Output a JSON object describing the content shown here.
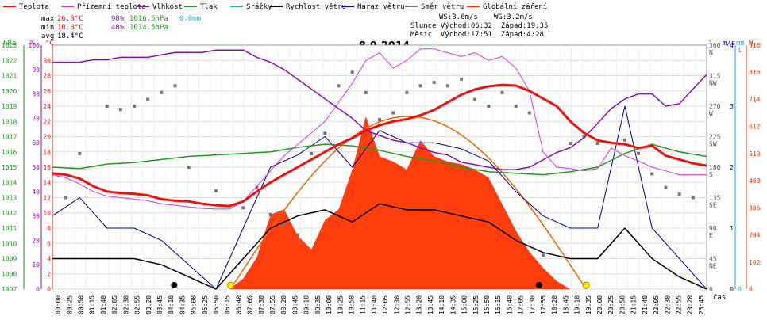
{
  "colors": {
    "teplota": "#ee1111",
    "prizemni": "#dd33dd",
    "vlhkost": "#8811aa",
    "tlak": "#229922",
    "srazky": "#22aacc",
    "rychlost": "#000000",
    "naraz": "#000088",
    "smer": "#777777",
    "zareni": "#ee3300",
    "zareni_fill": "#ff3300",
    "theory": "#ee6600"
  },
  "header": {
    "legend": [
      {
        "key": "teplota",
        "label": "Teplota"
      },
      {
        "key": "prizemni",
        "label": "Přízemní teplota"
      },
      {
        "key": "vlhkost",
        "label": "Vlhkost"
      },
      {
        "key": "tlak",
        "label": "Tlak"
      },
      {
        "key": "srazky",
        "label": "Srážky"
      },
      {
        "key": "rychlost",
        "label": "Rychlost větru"
      },
      {
        "key": "naraz",
        "label": "Náraz větru"
      },
      {
        "key": "smer",
        "label": "Směr větru"
      },
      {
        "key": "zareni",
        "label": "Globální záření"
      }
    ],
    "stats": {
      "max_label": "max",
      "max_temp": "26.8°C",
      "max_hum": "98%",
      "max_press": "1016.5hPa",
      "rain": "0.0mm",
      "min_label": "min",
      "min_temp": "10.8°C",
      "min_hum": "48%",
      "min_press": "1014.5hPa",
      "avg_label": "avg",
      "avg_temp": "18.4°C"
    },
    "ws": "WS:3.6m/s",
    "wg": "WG:3.2m/s",
    "sun_row": "Slunce Východ:06:32  Západ:19:35",
    "moon_row": "Měsíc  Východ:17:51  Západ:4:28"
  },
  "chart_data": {
    "type": "line",
    "title": "8.9.2014",
    "xlabel": "čas",
    "axes": {
      "hpa": {
        "label": "hPa",
        "min": 1007,
        "max": 1023,
        "ticks": [
          1007,
          1008,
          1009,
          1010,
          1011,
          1012,
          1013,
          1014,
          1015,
          1016,
          1017,
          1018,
          1019,
          1020,
          1021,
          1022,
          1023
        ]
      },
      "pct": {
        "label": "%",
        "min": 0,
        "max": 100,
        "ticks": [
          0,
          10,
          20,
          30,
          40,
          50,
          60,
          70,
          80,
          90,
          100
        ]
      },
      "temp": {
        "label": "°C",
        "min": 0,
        "max": 32,
        "ticks": [
          0,
          2,
          4,
          6,
          8,
          10,
          12,
          14,
          16,
          18,
          20,
          22,
          24,
          26,
          28,
          30
        ]
      },
      "dir": {
        "label": "°",
        "ticks": [
          {
            "v": 0,
            "t": "0"
          },
          {
            "v": 45,
            "t": "45",
            "c": "NE"
          },
          {
            "v": 90,
            "t": "90",
            "c": "E"
          },
          {
            "v": 135,
            "t": "135",
            "c": "SE"
          },
          {
            "v": 180,
            "t": "180",
            "c": "S"
          },
          {
            "v": 225,
            "t": "225",
            "c": "SW"
          },
          {
            "v": 270,
            "t": "270",
            "c": "W"
          },
          {
            "v": 315,
            "t": "315",
            "c": "NW"
          },
          {
            "v": 360,
            "t": "360",
            "c": "N"
          }
        ]
      },
      "ms": {
        "label": "m/s",
        "ticks": [
          0,
          1,
          2,
          3,
          4
        ]
      },
      "mm": {
        "label": "mm",
        "ticks": [
          0,
          1
        ]
      },
      "wm2": {
        "label": "W",
        "ticks": [
          0,
          102,
          204,
          306,
          408,
          510,
          612,
          714,
          816,
          918
        ]
      }
    },
    "time_labels": [
      "00:00",
      "00:25",
      "00:50",
      "01:15",
      "01:40",
      "02:05",
      "02:30",
      "02:55",
      "03:20",
      "03:45",
      "04:10",
      "04:35",
      "05:00",
      "05:25",
      "05:50",
      "06:15",
      "06:40",
      "07:05",
      "07:30",
      "07:55",
      "08:20",
      "08:45",
      "09:10",
      "09:35",
      "10:00",
      "10:25",
      "10:50",
      "11:15",
      "11:40",
      "12:05",
      "12:30",
      "12:55",
      "13:20",
      "13:45",
      "14:10",
      "14:35",
      "15:00",
      "15:25",
      "15:50",
      "16:15",
      "16:40",
      "17:05",
      "17:30",
      "17:55",
      "18:20",
      "18:45",
      "19:10",
      "19:35",
      "20:00",
      "20:25",
      "20:50",
      "21:15",
      "21:40",
      "22:05",
      "22:30",
      "22:55",
      "23:20",
      "23:45"
    ],
    "series": [
      {
        "key": "teplota",
        "name": "Teplota",
        "unit": "°C",
        "x": [
          0,
          0.5,
          1,
          1.5,
          2,
          2.5,
          3,
          3.5,
          4,
          4.5,
          5,
          5.5,
          6,
          6.5,
          7,
          7.5,
          8,
          8.5,
          9,
          9.5,
          10,
          10.5,
          11,
          11.5,
          12,
          12.5,
          13,
          13.5,
          14,
          14.5,
          15,
          15.5,
          16,
          16.5,
          17,
          17.5,
          18,
          18.5,
          19,
          19.5,
          20,
          20.5,
          21,
          21.5,
          22,
          22.5,
          23,
          23.5,
          24
        ],
        "values": [
          15.2,
          15.0,
          14.5,
          13.5,
          12.8,
          12.6,
          12.5,
          12.3,
          11.8,
          11.6,
          11.5,
          11.2,
          11.0,
          10.9,
          11.5,
          12.8,
          14.0,
          15.0,
          16.0,
          17.0,
          18.0,
          19.0,
          19.8,
          20.8,
          21.5,
          22.0,
          22.3,
          22.8,
          23.5,
          24.5,
          25.5,
          26.2,
          26.6,
          26.8,
          26.7,
          26.0,
          25.0,
          24.0,
          22.0,
          20.5,
          19.5,
          19.2,
          19.0,
          18.5,
          18.8,
          17.5,
          17.0,
          16.5,
          16.2
        ]
      },
      {
        "key": "prizemni",
        "name": "Přízemní teplota",
        "unit": "°C",
        "x": [
          0,
          0.5,
          1,
          1.5,
          2,
          2.5,
          3,
          3.5,
          4,
          4.5,
          5,
          5.5,
          6,
          6.5,
          7,
          7.5,
          8,
          8.5,
          9,
          9.5,
          10,
          10.5,
          11,
          11.5,
          12,
          12.5,
          13,
          13.5,
          14,
          14.5,
          15,
          15.5,
          16,
          16.5,
          17,
          17.5,
          18,
          18.5,
          19,
          19.5,
          20,
          20.5,
          21,
          21.5,
          22,
          22.5,
          23,
          23.5,
          24
        ],
        "values": [
          15.0,
          14.6,
          13.8,
          12.8,
          12.2,
          12.0,
          11.8,
          11.6,
          11.2,
          11.0,
          10.8,
          10.6,
          10.5,
          10.5,
          11.5,
          13.5,
          15.5,
          17.5,
          19.0,
          20.5,
          22.0,
          24.5,
          27.0,
          30.0,
          31.0,
          29.0,
          30.0,
          31.5,
          31.5,
          31.0,
          30.5,
          31.0,
          30.0,
          30.5,
          29.0,
          26.0,
          18.0,
          16.0,
          15.8,
          15.5,
          15.8,
          18.5,
          17.5,
          16.8,
          16.0,
          15.5,
          15.0,
          15.0,
          15.0
        ]
      },
      {
        "key": "vlhkost",
        "name": "Vlhkost",
        "unit": "%",
        "x": [
          0,
          0.5,
          1,
          1.5,
          2,
          2.5,
          3,
          3.5,
          4,
          4.5,
          5,
          5.5,
          6,
          6.5,
          7,
          7.5,
          8,
          8.5,
          9,
          9.5,
          10,
          10.5,
          11,
          11.5,
          12,
          12.5,
          13,
          13.5,
          14,
          14.5,
          15,
          15.5,
          16,
          16.5,
          17,
          17.5,
          18,
          18.5,
          19,
          19.5,
          20,
          20.5,
          21,
          21.5,
          22,
          22.5,
          23,
          23.5,
          24
        ],
        "values": [
          93,
          93,
          93,
          94,
          94,
          95,
          95,
          95,
          96,
          97,
          97,
          97,
          98,
          98,
          98,
          95,
          93,
          90,
          86,
          82,
          78,
          74,
          70,
          65,
          63,
          61,
          60,
          58,
          56,
          55,
          52,
          51,
          50,
          49,
          49,
          50,
          53,
          56,
          58,
          62,
          68,
          74,
          78,
          80,
          80,
          75,
          76,
          82,
          88
        ]
      },
      {
        "key": "tlak",
        "name": "Tlak",
        "unit": "hPa",
        "x": [
          0,
          1,
          2,
          3,
          4,
          5,
          6,
          7,
          8,
          9,
          10,
          11,
          12,
          13,
          14,
          15,
          16,
          17,
          18,
          19,
          20,
          21,
          22,
          23,
          24
        ],
        "values": [
          1015.0,
          1014.9,
          1015.2,
          1015.3,
          1015.5,
          1015.7,
          1015.8,
          1015.9,
          1016.0,
          1016.3,
          1016.5,
          1016.4,
          1016.1,
          1015.7,
          1015.4,
          1015.0,
          1014.7,
          1014.6,
          1014.5,
          1014.7,
          1015.0,
          1015.9,
          1016.5,
          1016.0,
          1015.7
        ]
      },
      {
        "key": "rychlost",
        "name": "Rychlost větru",
        "unit": "m/s",
        "x": [
          0,
          1,
          2,
          3,
          4,
          5,
          6,
          7,
          8,
          9,
          10,
          11,
          12,
          13,
          14,
          15,
          16,
          17,
          18,
          19,
          20,
          21,
          22,
          23,
          24
        ],
        "values": [
          0.5,
          0.5,
          0.5,
          0.5,
          0.4,
          0.2,
          0,
          0.5,
          1.0,
          1.2,
          1.3,
          1.1,
          1.4,
          1.3,
          1.3,
          1.2,
          1.1,
          0.8,
          0.6,
          0.5,
          0.5,
          1.0,
          0.5,
          0.2,
          0
        ]
      },
      {
        "key": "naraz",
        "name": "Náraz větru",
        "unit": "m/s",
        "x": [
          0,
          1,
          2,
          3,
          4,
          5,
          6,
          7,
          8,
          9,
          10,
          11,
          12,
          13,
          14,
          15,
          16,
          17,
          18,
          19,
          20,
          21,
          22,
          23,
          24
        ],
        "values": [
          1.2,
          1.5,
          1.0,
          1.0,
          0.8,
          0.4,
          0,
          1.0,
          2.0,
          2.2,
          2.5,
          2.0,
          2.6,
          2.4,
          2.4,
          2.3,
          2.1,
          1.6,
          1.2,
          1.0,
          1.0,
          3.0,
          1.0,
          0.5,
          0
        ]
      },
      {
        "key": "zareni",
        "name": "Globální záření",
        "unit": "W/m²",
        "x": [
          6.5,
          7,
          7.5,
          8,
          8.5,
          9,
          9.5,
          10,
          10.5,
          11,
          11.5,
          12,
          12.5,
          13,
          13.5,
          14,
          14.5,
          15,
          15.5,
          16,
          16.5,
          17,
          17.5,
          18,
          18.5,
          19
        ],
        "values": [
          0,
          40,
          120,
          280,
          300,
          200,
          150,
          260,
          300,
          450,
          650,
          500,
          480,
          450,
          560,
          500,
          480,
          470,
          450,
          420,
          320,
          220,
          140,
          80,
          30,
          0
        ]
      },
      {
        "key": "smer",
        "name": "Směr větru",
        "unit": "°",
        "x": [
          0.5,
          1,
          2,
          2.5,
          3,
          3.5,
          4,
          4.5,
          5,
          6,
          7,
          7.5,
          8,
          8.5,
          9,
          9.5,
          10,
          10.5,
          11,
          11.5,
          12,
          12.5,
          13,
          13.5,
          14,
          14.5,
          15,
          15.5,
          16,
          16.5,
          17,
          17.5,
          18,
          19,
          19.5,
          20,
          21,
          21.5,
          22,
          22.5,
          23,
          23.5
        ],
        "values": [
          135,
          200,
          270,
          265,
          270,
          280,
          290,
          300,
          180,
          145,
          120,
          150,
          110,
          95,
          80,
          200,
          230,
          300,
          320,
          290,
          250,
          260,
          290,
          300,
          305,
          300,
          310,
          280,
          270,
          290,
          270,
          260,
          50,
          215,
          225,
          215,
          220,
          200,
          170,
          150,
          140,
          135
        ]
      }
    ],
    "markers": [
      {
        "type": "sunrise",
        "time": "06:32"
      },
      {
        "type": "moonset",
        "time": "04:28"
      },
      {
        "type": "moonrise",
        "time": "17:51"
      },
      {
        "type": "sunset",
        "time": "19:35"
      }
    ]
  }
}
